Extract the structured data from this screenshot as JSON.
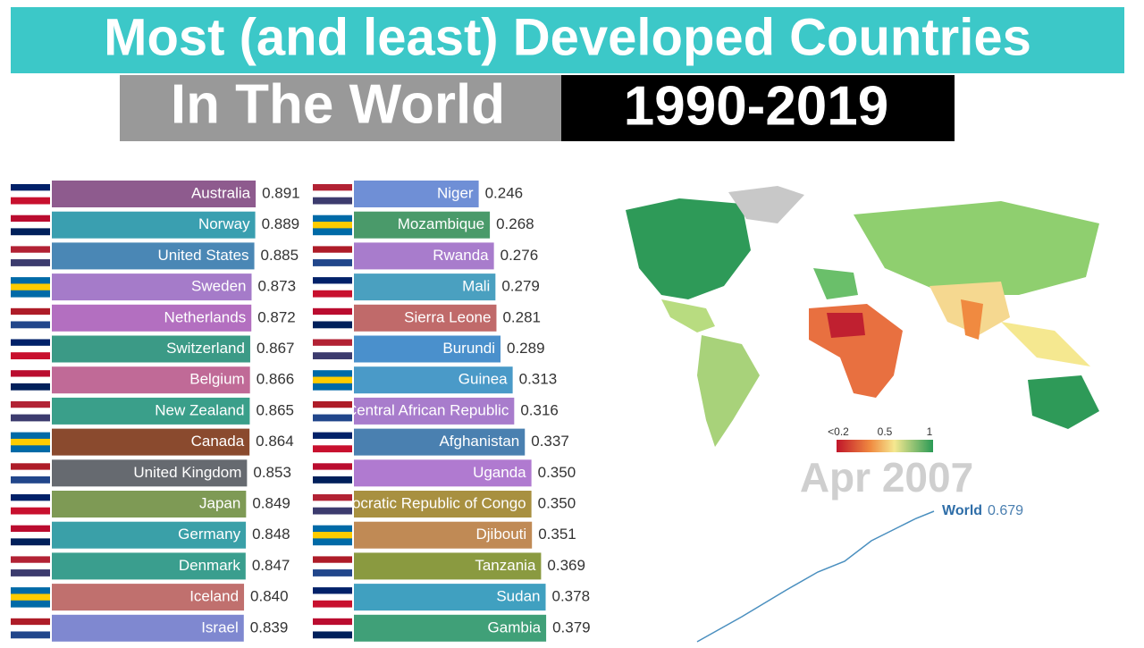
{
  "header": {
    "title": "Most (and least) Developed Countries",
    "subtitle": "In The World",
    "years": "1990-2019"
  },
  "chart_data": [
    {
      "type": "bar",
      "orientation": "horizontal",
      "categories": [
        "Australia",
        "Norway",
        "United States",
        "Sweden",
        "Netherlands",
        "Switzerland",
        "Belgium",
        "New Zealand",
        "Canada",
        "United Kingdom",
        "Japan",
        "Germany",
        "Denmark",
        "Iceland",
        "Israel"
      ],
      "values": [
        0.891,
        0.889,
        0.885,
        0.873,
        0.872,
        0.867,
        0.866,
        0.865,
        0.864,
        0.853,
        0.849,
        0.848,
        0.847,
        0.84,
        0.839
      ],
      "value_labels": [
        "0.891",
        "0.889",
        "0.885",
        "0.873",
        "0.872",
        "0.867",
        "0.866",
        "0.865",
        "0.864",
        "0.853",
        "0.849",
        "0.848",
        "0.847",
        "0.840",
        "0.839"
      ],
      "colors": [
        "#8e5b8e",
        "#3a9fb0",
        "#4a87b5",
        "#a57bc9",
        "#b36fc0",
        "#3b9a86",
        "#c06a97",
        "#3a9f8a",
        "#8a4a2e",
        "#666a70",
        "#7e9a55",
        "#3aa0a8",
        "#3a9e8e",
        "#c0706e",
        "#7f88d0"
      ],
      "xlim": [
        0,
        1
      ]
    },
    {
      "type": "bar",
      "orientation": "horizontal",
      "categories": [
        "Niger",
        "Mozambique",
        "Rwanda",
        "Mali",
        "Sierra Leone",
        "Burundi",
        "Guinea",
        "Central African Republic",
        "Afghanistan",
        "Uganda",
        "Democratic Republic of Congo",
        "Djibouti",
        "Tanzania",
        "Sudan",
        "Gambia"
      ],
      "values": [
        0.246,
        0.268,
        0.276,
        0.279,
        0.281,
        0.289,
        0.313,
        0.316,
        0.337,
        0.35,
        0.35,
        0.351,
        0.369,
        0.378,
        0.379
      ],
      "value_labels": [
        "0.246",
        "0.268",
        "0.276",
        "0.279",
        "0.281",
        "0.289",
        "0.313",
        "0.316",
        "0.337",
        "0.350",
        "0.350",
        "0.351",
        "0.369",
        "0.378",
        "0.379"
      ],
      "colors": [
        "#6f8fd6",
        "#4a9a6a",
        "#a87ccc",
        "#4aa0c0",
        "#c06a6a",
        "#4a90cc",
        "#4a9ac8",
        "#a87ccc",
        "#4a80b0",
        "#b07ad0",
        "#a89040",
        "#c08a55",
        "#8a9a40",
        "#40a0c0",
        "#40a078"
      ],
      "xlim": [
        0,
        0.4
      ]
    }
  ],
  "map": {
    "legend_labels": [
      "<0.2",
      "0.5",
      "1"
    ],
    "date": "Apr 2007"
  },
  "world": {
    "name": "World",
    "value_label": "0.679"
  }
}
